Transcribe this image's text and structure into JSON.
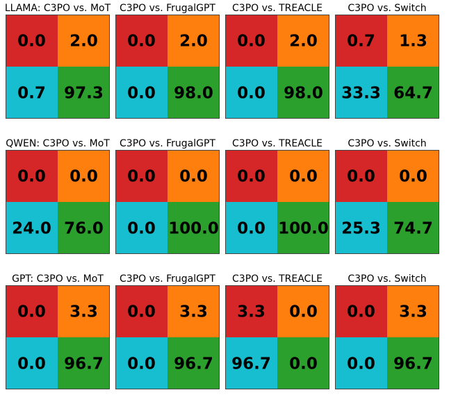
{
  "chart_data": [
    {
      "type": "heatmap",
      "title": "LLAMA: C3PO vs. MoT",
      "values": [
        [
          0.0,
          2.0
        ],
        [
          0.7,
          97.3
        ]
      ]
    },
    {
      "type": "heatmap",
      "title": "C3PO vs. FrugalGPT",
      "values": [
        [
          0.0,
          2.0
        ],
        [
          0.0,
          98.0
        ]
      ]
    },
    {
      "type": "heatmap",
      "title": "C3PO vs. TREACLE",
      "values": [
        [
          0.0,
          2.0
        ],
        [
          0.0,
          98.0
        ]
      ]
    },
    {
      "type": "heatmap",
      "title": "C3PO vs. Switch",
      "values": [
        [
          0.7,
          1.3
        ],
        [
          33.3,
          64.7
        ]
      ]
    },
    {
      "type": "heatmap",
      "title": "QWEN: C3PO vs. MoT",
      "values": [
        [
          0.0,
          0.0
        ],
        [
          24.0,
          76.0
        ]
      ]
    },
    {
      "type": "heatmap",
      "title": "C3PO vs. FrugalGPT",
      "values": [
        [
          0.0,
          0.0
        ],
        [
          0.0,
          100.0
        ]
      ]
    },
    {
      "type": "heatmap",
      "title": "C3PO vs. TREACLE",
      "values": [
        [
          0.0,
          0.0
        ],
        [
          0.0,
          100.0
        ]
      ]
    },
    {
      "type": "heatmap",
      "title": "C3PO vs. Switch",
      "values": [
        [
          0.0,
          0.0
        ],
        [
          25.3,
          74.7
        ]
      ]
    },
    {
      "type": "heatmap",
      "title": "GPT: C3PO vs. MoT",
      "values": [
        [
          0.0,
          3.3
        ],
        [
          0.0,
          96.7
        ]
      ]
    },
    {
      "type": "heatmap",
      "title": "C3PO vs. FrugalGPT",
      "values": [
        [
          0.0,
          3.3
        ],
        [
          0.0,
          96.7
        ]
      ]
    },
    {
      "type": "heatmap",
      "title": "C3PO vs. TREACLE",
      "values": [
        [
          3.3,
          0.0
        ],
        [
          96.7,
          0.0
        ]
      ]
    },
    {
      "type": "heatmap",
      "title": "C3PO vs. Switch",
      "values": [
        [
          0.0,
          3.3
        ],
        [
          0.0,
          96.7
        ]
      ]
    }
  ],
  "colors": {
    "top_left": "#d62728",
    "top_right": "#ff7f0e",
    "bottom_left": "#17becf",
    "bottom_right": "#2ca02c",
    "border": "#444444"
  }
}
